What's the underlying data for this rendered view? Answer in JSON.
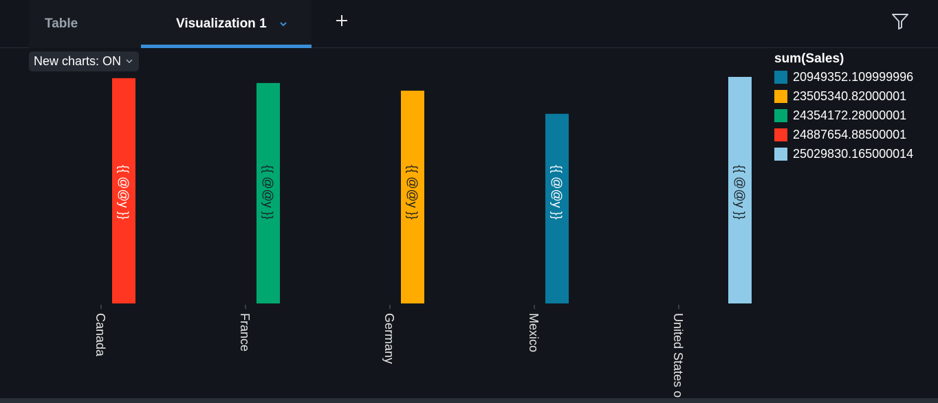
{
  "tabs": {
    "table_label": "Table",
    "visualization_label": "Visualization 1"
  },
  "toolbar": {
    "new_charts_label": "New charts: ON"
  },
  "icons": {
    "add": "plus-icon",
    "filter": "filter-icon",
    "tab_menu": "chevron-down-icon",
    "dropdown": "caret-down-icon"
  },
  "colors": {
    "background": "#12161c",
    "accent": "#3a8fd9"
  },
  "chart_data": {
    "type": "bar",
    "orientation": "vertical",
    "legend_title": "sum(Sales)",
    "legend_placement": "top-right",
    "data_label_template": "{{ @@y }}",
    "categories": [
      "Canada",
      "France",
      "Germany",
      "Mexico",
      "United States o"
    ],
    "series": [
      {
        "name": "20949352.109999996",
        "color": "#0a7a9e",
        "values": [
          null,
          null,
          null,
          20949352.109999996,
          null
        ]
      },
      {
        "name": "23505340.82000001",
        "color": "#ffab00",
        "values": [
          null,
          null,
          23505340.82000001,
          null,
          null
        ]
      },
      {
        "name": "24354172.28000001",
        "color": "#00a870",
        "values": [
          null,
          24354172.28000001,
          null,
          null,
          null
        ]
      },
      {
        "name": "24887654.88500001",
        "color": "#ff3621",
        "values": [
          24887654.88500001,
          null,
          null,
          null,
          null
        ]
      },
      {
        "name": "25029830.165000014",
        "color": "#8fcbe9",
        "values": [
          null,
          null,
          null,
          null,
          25029830.165000014
        ]
      }
    ],
    "grid": false
  }
}
